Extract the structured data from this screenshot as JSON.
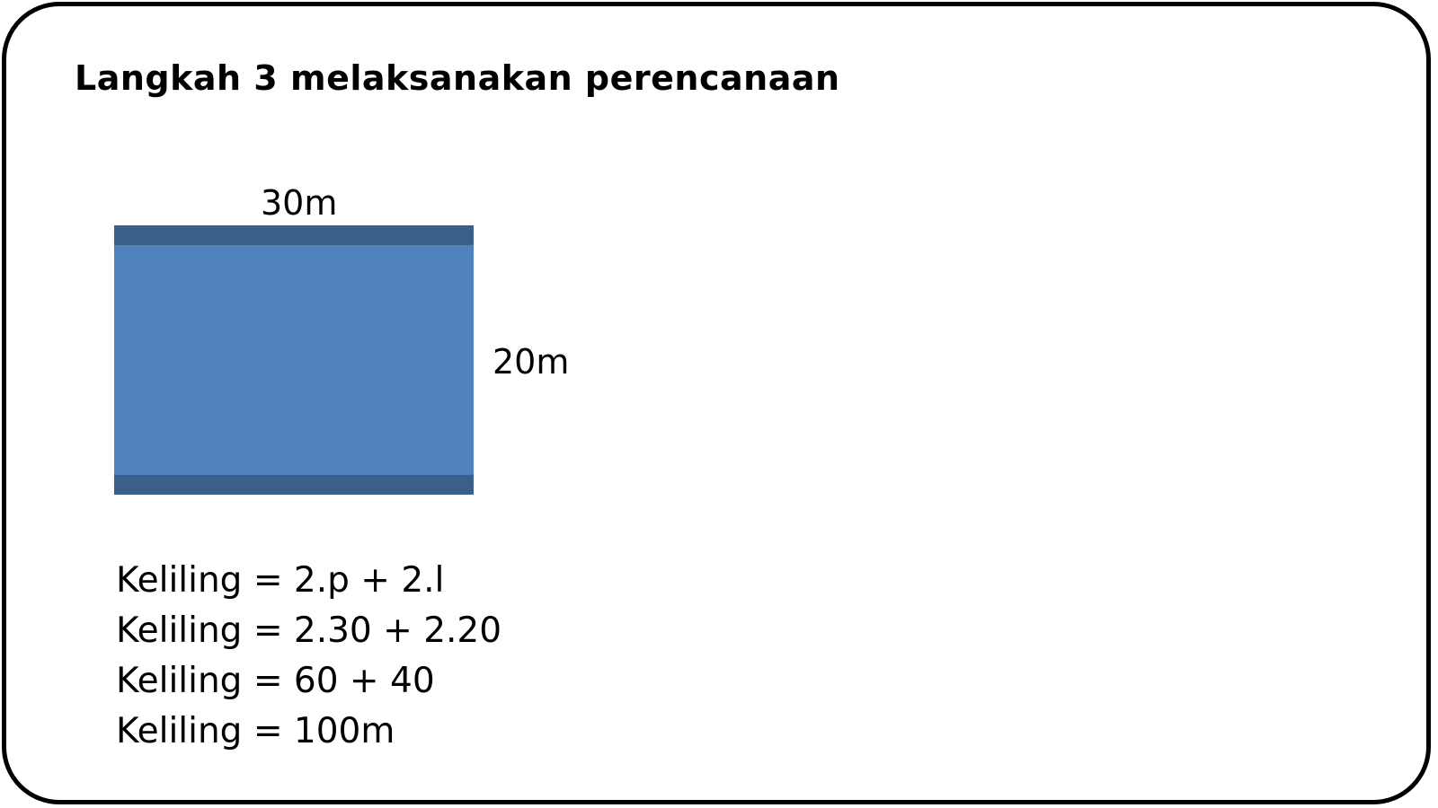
{
  "slide": {
    "title": "Langkah 3 melaksanakan perencanaan"
  },
  "figure": {
    "shape": "rectangle",
    "fill_color": "#4f81bd",
    "band_color": "#3a5f8b",
    "length_label": "30m",
    "width_label": "20m"
  },
  "calculation": {
    "lines": [
      "Keliling = 2.p + 2.l",
      "Keliling = 2.30 + 2.20",
      "Keliling = 60 + 40",
      "Keliling = 100m"
    ]
  }
}
